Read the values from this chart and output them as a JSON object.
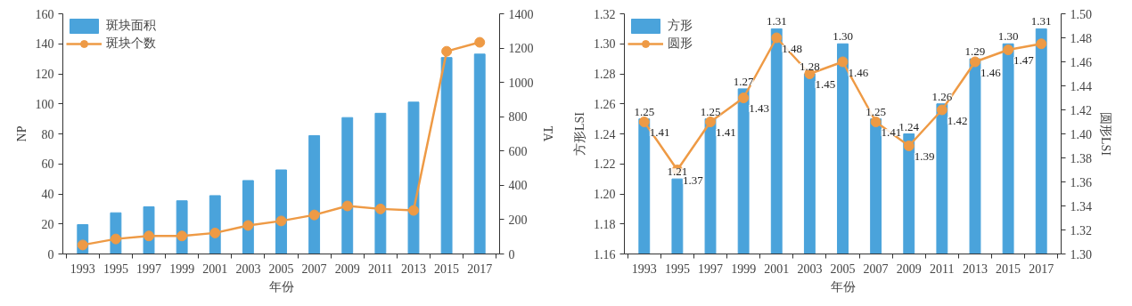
{
  "chart_data": [
    {
      "type": "bar",
      "xlabel": "年份",
      "ylabel": "NP",
      "y2label": "TA",
      "categories": [
        "1993",
        "1995",
        "1997",
        "1999",
        "2001",
        "2003",
        "2005",
        "2007",
        "2009",
        "2011",
        "2013",
        "2015",
        "2017"
      ],
      "series": [
        {
          "name": "斑块面积",
          "type": "bar",
          "axis": "y2",
          "color": "#4aa3db",
          "values": [
            171,
            240,
            275,
            310,
            340,
            428,
            490,
            690,
            795,
            820,
            885,
            1145,
            1165
          ]
        },
        {
          "name": "斑块个数",
          "type": "line",
          "axis": "y",
          "color": "#ee9a45",
          "values": [
            6,
            10,
            12,
            12,
            14,
            19,
            22,
            26,
            32,
            30,
            29,
            135,
            141
          ]
        }
      ],
      "ylim": [
        0,
        160
      ],
      "yticks": [
        0,
        20,
        40,
        60,
        80,
        100,
        120,
        140,
        160
      ],
      "y2lim": [
        0,
        1400
      ],
      "y2ticks": [
        0,
        200,
        400,
        600,
        800,
        1000,
        1200,
        1400
      ],
      "legend": "top left",
      "marker": "circle",
      "grid": false
    },
    {
      "type": "bar",
      "xlabel": "年份",
      "ylabel": "方形LSI",
      "y2label": "圆形LSI",
      "categories": [
        "1993",
        "1995",
        "1997",
        "1999",
        "2001",
        "2003",
        "2005",
        "2007",
        "2009",
        "2011",
        "2013",
        "2015",
        "2017"
      ],
      "series": [
        {
          "name": "方形",
          "type": "bar",
          "axis": "y",
          "color": "#4aa3db",
          "values": [
            1.25,
            1.21,
            1.25,
            1.27,
            1.31,
            1.28,
            1.3,
            1.25,
            1.24,
            1.26,
            1.29,
            1.3,
            1.31
          ],
          "value_labels": [
            "1.25",
            "1.21",
            "1.25",
            "1.27",
            "1.31",
            "1.28",
            "1.30",
            "1.25",
            "1.24",
            "1.26",
            "1.29",
            "1.30",
            "1.31"
          ]
        },
        {
          "name": "圆形",
          "type": "line",
          "axis": "y2",
          "color": "#ee9a45",
          "values": [
            1.41,
            1.37,
            1.41,
            1.43,
            1.48,
            1.45,
            1.46,
            1.41,
            1.39,
            1.42,
            1.46,
            1.47,
            1.475
          ],
          "value_labels": [
            "1.41",
            "1.37",
            "1.41",
            "1.43",
            "1.48",
            "1.45",
            "1.46",
            "1.41",
            "1.39",
            "1.42",
            "1.46",
            "1.47",
            null
          ]
        }
      ],
      "ylim": [
        1.16,
        1.32
      ],
      "yticks": [
        1.16,
        1.18,
        {
          "value": 1.2,
          "label": "1.20"
        },
        1.22,
        1.24,
        1.26,
        1.28,
        {
          "value": 1.3,
          "label": "1.30"
        },
        1.32
      ],
      "y2lim": [
        1.3,
        1.5
      ],
      "y2ticks": [
        {
          "value": 1.3,
          "label": "1.30"
        },
        1.32,
        1.34,
        1.36,
        1.38,
        {
          "value": 1.4,
          "label": "1.40"
        },
        1.42,
        1.44,
        1.46,
        1.48,
        {
          "value": 1.5,
          "label": "1.50"
        }
      ],
      "legend": "top left",
      "marker": "circle",
      "grid": false
    }
  ]
}
